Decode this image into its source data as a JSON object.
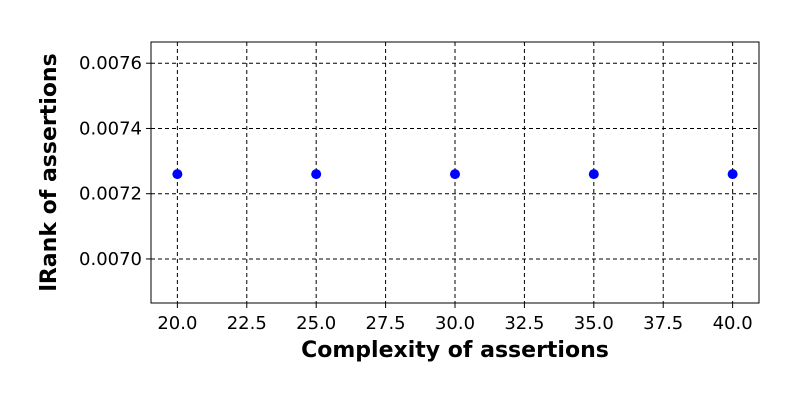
{
  "chart_data": {
    "type": "scatter",
    "title": "",
    "xlabel": "Complexity of assertions",
    "ylabel": "lRank of assertions",
    "x": [
      20,
      25,
      30,
      35,
      40
    ],
    "y": [
      0.00726,
      0.00726,
      0.00726,
      0.00726,
      0.00726
    ],
    "xlim": [
      19.05,
      40.95
    ],
    "ylim": [
      0.006865,
      0.007665
    ],
    "x_ticks": [
      20,
      22.5,
      25,
      27.5,
      30,
      32.5,
      35,
      37.5,
      40
    ],
    "x_tick_labels": [
      "20.0",
      "22.5",
      "25.0",
      "27.5",
      "30.0",
      "32.5",
      "35.0",
      "37.5",
      "40.0"
    ],
    "y_ticks": [
      0.007,
      0.0072,
      0.0074,
      0.0076
    ],
    "y_tick_labels": [
      "0.0070",
      "0.0072",
      "0.0074",
      "0.0076"
    ],
    "grid": true,
    "grid_style": "dashed",
    "marker_color": "#0000ff",
    "grid_color": "#000000"
  }
}
